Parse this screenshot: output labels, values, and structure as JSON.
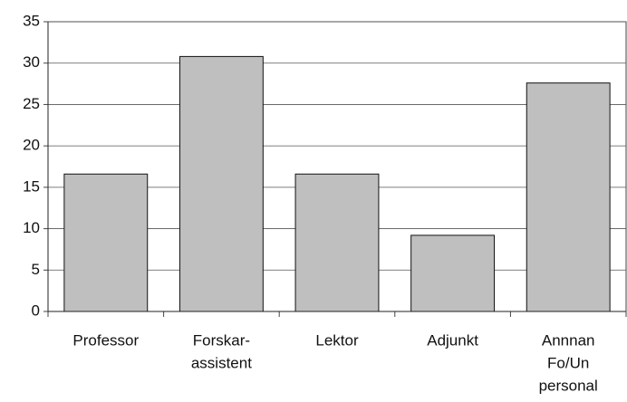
{
  "chart_data": {
    "type": "bar",
    "categories": [
      [
        "Professor"
      ],
      [
        "Forskar-",
        "assistent"
      ],
      [
        "Lektor"
      ],
      [
        "Adjunkt"
      ],
      [
        "Annnan",
        "Fo/Un",
        "personal"
      ]
    ],
    "values": [
      16.6,
      30.8,
      16.6,
      9.2,
      27.6
    ],
    "color": "#bfbfbf",
    "ylim": [
      0,
      35
    ],
    "yticks": [
      0,
      5,
      10,
      15,
      20,
      25,
      30,
      35
    ],
    "grid": true
  }
}
